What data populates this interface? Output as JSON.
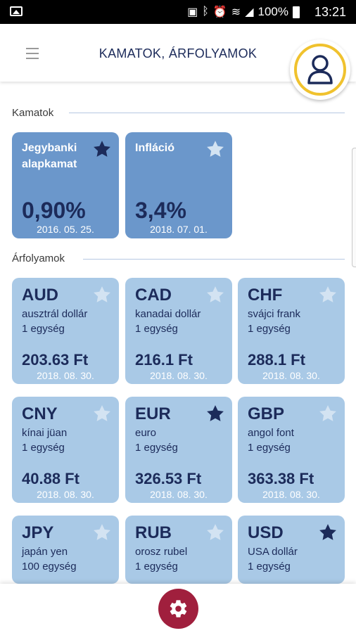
{
  "status_bar": {
    "battery": "100%",
    "time": "13:21"
  },
  "header": {
    "title": "KAMATOK, ÁRFOLYAMOK"
  },
  "sections": {
    "rates": "Kamatok",
    "fx": "Árfolyamok"
  },
  "colors": {
    "dark_card": "#6b97cb",
    "light_card": "#a9c9e6",
    "navy": "#1c2b5a",
    "avatar_ring": "#f0c22e",
    "settings": "#a01f3d"
  },
  "rates": [
    {
      "title": "Jegybanki alapkamat",
      "value": "0,90%",
      "date": "2016. 05. 25.",
      "favorite": true
    },
    {
      "title": "Infláció",
      "value": "3,4%",
      "date": "2018. 07. 01.",
      "favorite": false
    }
  ],
  "currencies": [
    {
      "code": "AUD",
      "name": "ausztrál dollár",
      "unit": "1 egység",
      "value": "203.63 Ft",
      "date": "2018. 08. 30.",
      "favorite": false
    },
    {
      "code": "CAD",
      "name": "kanadai dollár",
      "unit": "1 egység",
      "value": "216.1 Ft",
      "date": "2018. 08. 30.",
      "favorite": false
    },
    {
      "code": "CHF",
      "name": "svájci frank",
      "unit": "1 egység",
      "value": "288.1 Ft",
      "date": "2018. 08. 30.",
      "favorite": false
    },
    {
      "code": "CNY",
      "name": "kínai jüan",
      "unit": "1 egység",
      "value": "40.88 Ft",
      "date": "2018. 08. 30.",
      "favorite": false
    },
    {
      "code": "EUR",
      "name": "euro",
      "unit": "1 egység",
      "value": "326.53 Ft",
      "date": "2018. 08. 30.",
      "favorite": true
    },
    {
      "code": "GBP",
      "name": "angol font",
      "unit": "1 egység",
      "value": "363.38 Ft",
      "date": "2018. 08. 30.",
      "favorite": false
    },
    {
      "code": "JPY",
      "name": "japán yen",
      "unit": "100 egység",
      "value": "",
      "date": "",
      "favorite": false
    },
    {
      "code": "RUB",
      "name": "orosz rubel",
      "unit": "1 egység",
      "value": "",
      "date": "",
      "favorite": false
    },
    {
      "code": "USD",
      "name": "USA dollár",
      "unit": "1 egység",
      "value": "",
      "date": "",
      "favorite": true
    }
  ]
}
